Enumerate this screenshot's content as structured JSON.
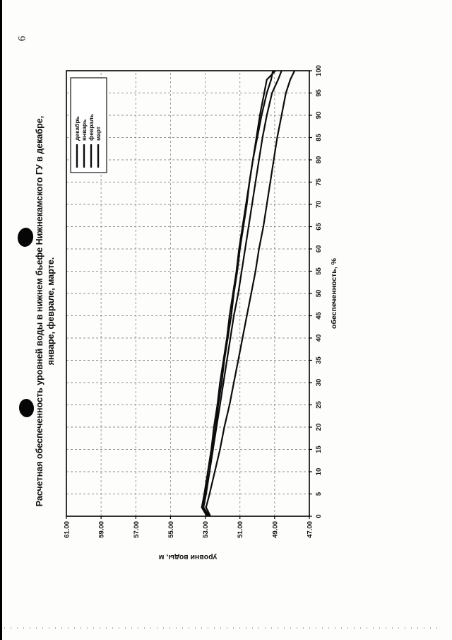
{
  "page": {
    "number": "6"
  },
  "chart_data": {
    "type": "line",
    "title": "Расчетная обеспеченность уровней воды в нижнем бьефе Нижнекамского ГУ в декабре, январе, феврале, марте.",
    "title_lines": [
      "Расчетная обеспеченность уровней воды в нижнем бьефе Нижнекамского ГУ в декабре,",
      "январе, феврале, марте."
    ],
    "xlabel": "обеспеченность, %",
    "ylabel": "уровни воды, м",
    "xlim": [
      0,
      100
    ],
    "ylim": [
      47,
      61
    ],
    "xticks": [
      0,
      5,
      10,
      15,
      20,
      25,
      30,
      35,
      40,
      45,
      50,
      55,
      60,
      65,
      70,
      75,
      80,
      85,
      90,
      95,
      100
    ],
    "yticks": [
      47,
      49,
      51,
      53,
      55,
      57,
      59,
      61
    ],
    "ytick_labels": [
      "47.00",
      "49.00",
      "51.00",
      "53.00",
      "55.00",
      "57.00",
      "59.00",
      "61.00"
    ],
    "grid": "dashed",
    "legend_position": "top-right-inside",
    "line_color": "#0c0c0c",
    "x": [
      0,
      2,
      5,
      10,
      15,
      20,
      25,
      30,
      35,
      40,
      45,
      50,
      55,
      60,
      65,
      70,
      75,
      80,
      85,
      90,
      95,
      98,
      100
    ],
    "series": [
      {
        "name": "декабрь",
        "values": [
          52.75,
          53.1,
          52.95,
          52.75,
          52.6,
          52.4,
          52.25,
          52.05,
          51.9,
          51.7,
          51.5,
          51.35,
          51.15,
          51.0,
          50.8,
          50.6,
          50.45,
          50.25,
          50.05,
          49.85,
          49.6,
          49.45,
          48.95
        ]
      },
      {
        "name": "январь",
        "values": [
          52.9,
          53.2,
          53.05,
          52.85,
          52.65,
          52.5,
          52.3,
          52.15,
          51.95,
          51.75,
          51.6,
          51.4,
          51.2,
          51.05,
          50.85,
          50.65,
          50.45,
          50.25,
          50.0,
          49.75,
          49.45,
          49.2,
          49.1
        ]
      },
      {
        "name": "февраль",
        "values": [
          52.85,
          53.15,
          53.0,
          52.75,
          52.55,
          52.35,
          52.15,
          51.95,
          51.75,
          51.55,
          51.35,
          51.1,
          50.9,
          50.7,
          50.5,
          50.3,
          50.1,
          49.9,
          49.7,
          49.45,
          49.15,
          48.8,
          48.6
        ]
      },
      {
        "name": "март",
        "values": [
          52.7,
          52.95,
          52.75,
          52.45,
          52.15,
          51.9,
          51.6,
          51.35,
          51.1,
          50.85,
          50.6,
          50.35,
          50.1,
          49.9,
          49.65,
          49.45,
          49.25,
          49.05,
          48.85,
          48.6,
          48.35,
          48.1,
          47.85
        ]
      }
    ]
  }
}
